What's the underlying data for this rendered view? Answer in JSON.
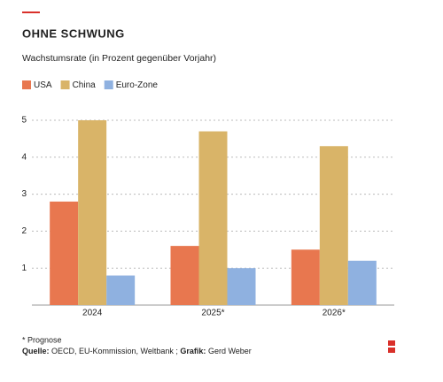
{
  "chart_data": {
    "type": "bar",
    "title": "OHNE SCHWUNG",
    "subtitle": "Wachstumsrate (in Prozent gegenüber Vorjahr)",
    "categories": [
      "2024",
      "2025*",
      "2026*"
    ],
    "series": [
      {
        "name": "USA",
        "color": "#e8774f",
        "values": [
          2.8,
          1.6,
          1.5
        ]
      },
      {
        "name": "China",
        "color": "#d9b468",
        "values": [
          5.0,
          4.7,
          4.3
        ]
      },
      {
        "name": "Euro-Zone",
        "color": "#8fb1e0",
        "values": [
          0.8,
          1.0,
          1.2
        ]
      }
    ],
    "ylim": [
      0,
      5
    ],
    "yticks": [
      1,
      2,
      3,
      4,
      5
    ],
    "grid": true,
    "note": "* Prognose",
    "source_label": "Quelle:",
    "source": "OECD, EU-Kommission, Weltbank ;",
    "graphic_label": "Grafik:",
    "graphic": "Gerd Weber"
  }
}
